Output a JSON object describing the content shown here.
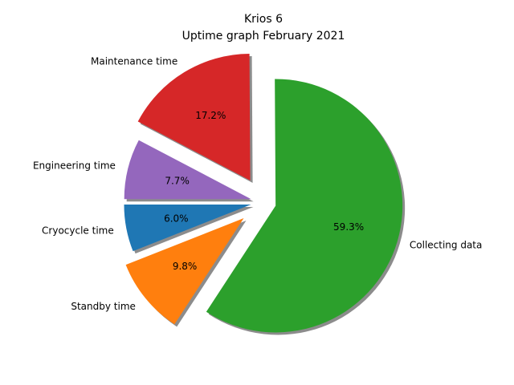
{
  "chart_data": {
    "type": "pie",
    "title": "Krios 6",
    "subtitle": "Uptime graph February 2021",
    "start_angle_deg": 180,
    "direction": "counterclockwise",
    "shadow": true,
    "slices": [
      {
        "label": "Cryocycle time",
        "percent": 6.0,
        "color": "#1f77b4",
        "explode": 0.1
      },
      {
        "label": "Standby time",
        "percent": 9.8,
        "color": "#ff7f0e",
        "explode": 0.2
      },
      {
        "label": "Collecting data",
        "percent": 59.3,
        "color": "#2ca02c",
        "explode": 0.1
      },
      {
        "label": "Maintenance time",
        "percent": 17.2,
        "color": "#d62728",
        "explode": 0.2
      },
      {
        "label": "Engineering time",
        "percent": 7.7,
        "color": "#9467bd",
        "explode": 0.1
      }
    ]
  }
}
